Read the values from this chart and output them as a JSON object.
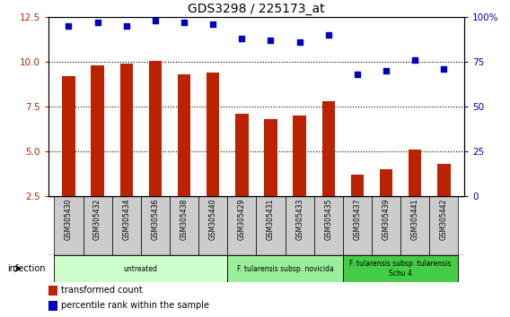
{
  "title": "GDS3298 / 225173_at",
  "samples": [
    "GSM305430",
    "GSM305432",
    "GSM305434",
    "GSM305436",
    "GSM305438",
    "GSM305440",
    "GSM305429",
    "GSM305431",
    "GSM305433",
    "GSM305435",
    "GSM305437",
    "GSM305439",
    "GSM305441",
    "GSM305442"
  ],
  "bar_values": [
    9.2,
    9.8,
    9.9,
    10.05,
    9.3,
    9.4,
    7.1,
    6.8,
    7.0,
    7.8,
    3.7,
    4.0,
    5.1,
    4.3
  ],
  "dot_values": [
    12.0,
    12.2,
    12.0,
    12.3,
    12.2,
    12.1,
    11.3,
    11.2,
    11.1,
    11.5,
    9.3,
    9.5,
    10.1,
    9.6
  ],
  "bar_color": "#bb2200",
  "dot_color": "#0000bb",
  "ylim_left": [
    2.5,
    12.5
  ],
  "ylim_right": [
    0,
    100
  ],
  "yticks_left": [
    2.5,
    5.0,
    7.5,
    10.0,
    12.5
  ],
  "yticks_right": [
    0,
    25,
    50,
    75,
    100
  ],
  "ytick_labels_right": [
    "0",
    "25",
    "50",
    "75",
    "100%"
  ],
  "groups": [
    {
      "label": "untreated",
      "start": 0,
      "end": 6,
      "color": "#ccffcc"
    },
    {
      "label": "F. tularensis subsp. novicida",
      "start": 6,
      "end": 10,
      "color": "#99ee99"
    },
    {
      "label": "F. tularensis subsp. tularensis\nSchu 4",
      "start": 10,
      "end": 14,
      "color": "#44cc44"
    }
  ],
  "infection_label": "infection",
  "legend_bar_label": "transformed count",
  "legend_dot_label": "percentile rank within the sample",
  "bg_color": "#ffffff",
  "tick_area_color": "#cccccc",
  "bar_bottom": 2.5
}
